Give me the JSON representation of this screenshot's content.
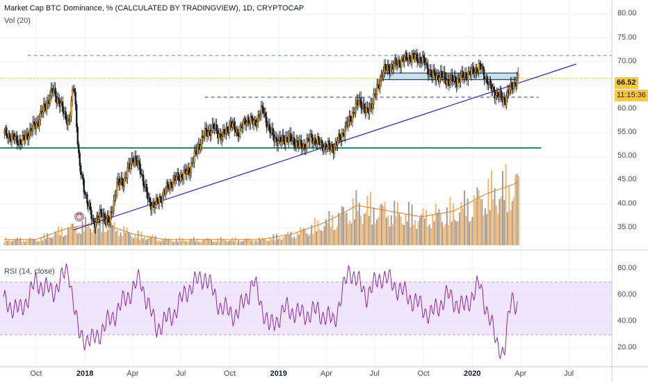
{
  "header": {
    "title": "Market Cap BTC Dominance, % (CALCULATED BY TRADINGVIEW), 1D, CRYPTOCAP",
    "volume_label": "Vol (20)",
    "rsi_label": "RSI (14, close)"
  },
  "price_axis": {
    "ticks": [
      "80.00",
      "75.00",
      "70.00",
      "65.00",
      "60.00",
      "55.00",
      "50.00",
      "45.00",
      "40.00",
      "35.00"
    ],
    "current_price": "66.52",
    "countdown": "11:15:36"
  },
  "rsi_axis": {
    "ticks": [
      "80.00",
      "60.00",
      "40.00",
      "20.00"
    ]
  },
  "time_axis": {
    "labels": [
      {
        "text": "Oct",
        "bold": false
      },
      {
        "text": "2018",
        "bold": true
      },
      {
        "text": "Apr",
        "bold": false
      },
      {
        "text": "Jul",
        "bold": false
      },
      {
        "text": "Oct",
        "bold": false
      },
      {
        "text": "2019",
        "bold": true
      },
      {
        "text": "Apr",
        "bold": false
      },
      {
        "text": "Jul",
        "bold": false
      },
      {
        "text": "Oct",
        "bold": false
      },
      {
        "text": "2020",
        "bold": true
      },
      {
        "text": "Apr",
        "bold": false
      },
      {
        "text": "Jul",
        "bold": false
      }
    ]
  },
  "colors": {
    "up": "#f7a600",
    "down": "#131722",
    "trendline": "#3a3ad6",
    "support": "#1a8f7a",
    "dashed_high": "#2a9d8f",
    "dashed_mid": "#3a3ad6",
    "price_line": "#f0a500",
    "rsi_line": "#8e24aa",
    "rsi_band": "#eadcfb",
    "vol_up": "#f5b66b",
    "vol_down": "#9e9e9e",
    "vol_ma": "#e07b1a",
    "box": "#a8d8f5"
  },
  "chart_data": [
    {
      "type": "line",
      "title": "Market Cap BTC Dominance, % (CALCULATED BY TRADINGVIEW), 1D, CRYPTOCAP",
      "x": [
        "2017-08-01",
        "2017-09-01",
        "2017-10-01",
        "2017-11-01",
        "2017-12-01",
        "2017-12-10",
        "2017-12-20",
        "2018-01-01",
        "2018-01-15",
        "2018-02-01",
        "2018-02-15",
        "2018-03-01",
        "2018-03-15",
        "2018-04-01",
        "2018-04-15",
        "2018-05-01",
        "2018-05-15",
        "2018-06-01",
        "2018-06-15",
        "2018-07-01",
        "2018-07-15",
        "2018-08-01",
        "2018-08-15",
        "2018-09-01",
        "2018-09-15",
        "2018-10-01",
        "2018-10-15",
        "2018-11-01",
        "2018-11-15",
        "2018-12-01",
        "2018-12-15",
        "2019-01-01",
        "2019-01-15",
        "2019-02-01",
        "2019-02-15",
        "2019-03-01",
        "2019-03-15",
        "2019-04-01",
        "2019-04-15",
        "2019-05-01",
        "2019-05-15",
        "2019-06-01",
        "2019-06-15",
        "2019-07-01",
        "2019-07-15",
        "2019-08-01",
        "2019-08-15",
        "2019-09-01",
        "2019-09-15",
        "2019-10-01",
        "2019-10-15",
        "2019-11-01",
        "2019-11-15",
        "2019-12-01",
        "2019-12-15",
        "2020-01-01",
        "2020-01-15",
        "2020-02-01",
        "2020-02-15",
        "2020-03-01",
        "2020-03-15",
        "2020-03-27"
      ],
      "series": [
        {
          "values": [
            55,
            53,
            57,
            64,
            57,
            66,
            48,
            42,
            36,
            38,
            36,
            44,
            45,
            50,
            47,
            40,
            40,
            43,
            45,
            46,
            47,
            52,
            55,
            56,
            54,
            57,
            55,
            58,
            57,
            60,
            55,
            53,
            54,
            53,
            52,
            54,
            53,
            52,
            52,
            55,
            58,
            62,
            59,
            63,
            68,
            69,
            70,
            71,
            71,
            70,
            67,
            67,
            66,
            66,
            67,
            68,
            69,
            65,
            63,
            62,
            65,
            66.52
          ]
        }
      ],
      "ylim": [
        31,
        83
      ],
      "annotations": {
        "resistance_dashed": 71.3,
        "mid_dashed": 62.5,
        "support_solid": 51.8,
        "last_price_line": 66.52,
        "trendline": {
          "from": [
            "2017-12-10",
            34.5
          ],
          "to": [
            "2020-07-15",
            69.5
          ]
        },
        "range_box": {
          "from": "2019-07-15",
          "to": "2020-03-27",
          "low": 66.2,
          "high": 67.6
        }
      }
    },
    {
      "type": "bar",
      "title": "Vol (20)",
      "note": "volume histogram with 20-period moving average; relative heights",
      "x": [
        "2017-08",
        "2017-10",
        "2017-12",
        "2018-02",
        "2018-04",
        "2018-06",
        "2018-08",
        "2018-10",
        "2018-12",
        "2019-02",
        "2019-04",
        "2019-06",
        "2019-08",
        "2019-10",
        "2019-12",
        "2020-02",
        "2020-03"
      ],
      "values": [
        1,
        1,
        3,
        4,
        2,
        1,
        1,
        1,
        1,
        2,
        4,
        7,
        6,
        5,
        6,
        9,
        11
      ]
    },
    {
      "type": "line",
      "title": "RSI (14, close)",
      "x": [
        "2017-08-01",
        "2017-09-01",
        "2017-10-01",
        "2017-11-01",
        "2017-12-01",
        "2017-12-20",
        "2018-01-15",
        "2018-02-15",
        "2018-03-15",
        "2018-04-15",
        "2018-05-15",
        "2018-06-15",
        "2018-07-15",
        "2018-08-15",
        "2018-09-15",
        "2018-10-15",
        "2018-11-15",
        "2018-12-15",
        "2019-01-15",
        "2019-02-15",
        "2019-03-15",
        "2019-04-15",
        "2019-05-15",
        "2019-06-15",
        "2019-07-15",
        "2019-08-15",
        "2019-09-15",
        "2019-10-15",
        "2019-11-15",
        "2019-12-15",
        "2020-01-15",
        "2020-02-15",
        "2020-03-01",
        "2020-03-15",
        "2020-03-27"
      ],
      "series": [
        {
          "values": [
            55,
            48,
            70,
            62,
            80,
            30,
            25,
            40,
            55,
            72,
            35,
            45,
            65,
            75,
            50,
            45,
            70,
            35,
            50,
            45,
            48,
            40,
            80,
            60,
            75,
            65,
            55,
            45,
            60,
            50,
            68,
            25,
            15,
            60,
            52
          ]
        }
      ],
      "ylim": [
        10,
        90
      ],
      "bands": {
        "upper": 70,
        "lower": 30
      }
    }
  ]
}
